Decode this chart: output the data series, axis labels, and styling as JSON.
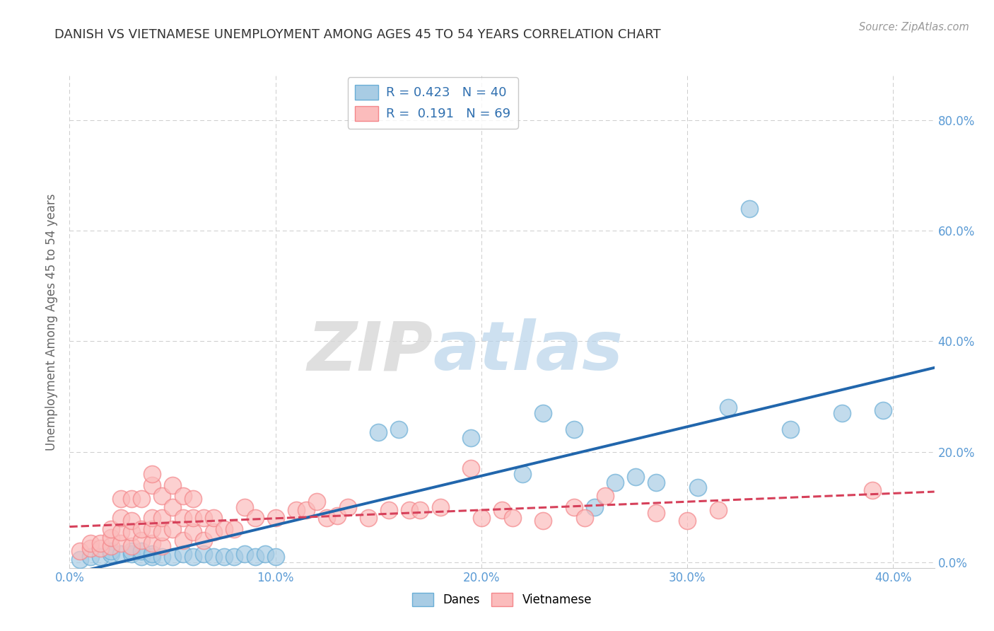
{
  "title": "DANISH VS VIETNAMESE UNEMPLOYMENT AMONG AGES 45 TO 54 YEARS CORRELATION CHART",
  "source": "Source: ZipAtlas.com",
  "xlabel_ticks": [
    "0.0%",
    "10.0%",
    "20.0%",
    "30.0%",
    "40.0%"
  ],
  "ylabel_ticks": [
    "0.0%",
    "20.0%",
    "40.0%",
    "60.0%",
    "80.0%"
  ],
  "xlim": [
    0.0,
    0.42
  ],
  "ylim": [
    -0.01,
    0.88
  ],
  "ylabel": "Unemployment Among Ages 45 to 54 years",
  "danes_r": 0.423,
  "danes_n": 40,
  "viet_r": 0.191,
  "viet_n": 69,
  "danes_color": "#a8cce4",
  "danes_edge_color": "#6aaed6",
  "viet_color": "#fbbcbc",
  "viet_edge_color": "#f4868a",
  "danes_line_color": "#2166ac",
  "viet_line_color": "#d6405a",
  "danes_scatter": [
    [
      0.005,
      0.005
    ],
    [
      0.01,
      0.01
    ],
    [
      0.015,
      0.01
    ],
    [
      0.02,
      0.015
    ],
    [
      0.02,
      0.02
    ],
    [
      0.025,
      0.015
    ],
    [
      0.03,
      0.015
    ],
    [
      0.03,
      0.02
    ],
    [
      0.035,
      0.01
    ],
    [
      0.035,
      0.02
    ],
    [
      0.04,
      0.01
    ],
    [
      0.04,
      0.015
    ],
    [
      0.045,
      0.01
    ],
    [
      0.05,
      0.01
    ],
    [
      0.055,
      0.015
    ],
    [
      0.06,
      0.01
    ],
    [
      0.065,
      0.015
    ],
    [
      0.07,
      0.01
    ],
    [
      0.075,
      0.01
    ],
    [
      0.08,
      0.01
    ],
    [
      0.085,
      0.015
    ],
    [
      0.09,
      0.01
    ],
    [
      0.095,
      0.015
    ],
    [
      0.1,
      0.01
    ],
    [
      0.15,
      0.235
    ],
    [
      0.16,
      0.24
    ],
    [
      0.195,
      0.225
    ],
    [
      0.22,
      0.16
    ],
    [
      0.23,
      0.27
    ],
    [
      0.245,
      0.24
    ],
    [
      0.255,
      0.1
    ],
    [
      0.265,
      0.145
    ],
    [
      0.275,
      0.155
    ],
    [
      0.285,
      0.145
    ],
    [
      0.305,
      0.135
    ],
    [
      0.32,
      0.28
    ],
    [
      0.33,
      0.64
    ],
    [
      0.35,
      0.24
    ],
    [
      0.375,
      0.27
    ],
    [
      0.395,
      0.275
    ]
  ],
  "viet_scatter": [
    [
      0.005,
      0.02
    ],
    [
      0.01,
      0.025
    ],
    [
      0.01,
      0.035
    ],
    [
      0.015,
      0.025
    ],
    [
      0.015,
      0.035
    ],
    [
      0.02,
      0.03
    ],
    [
      0.02,
      0.045
    ],
    [
      0.02,
      0.06
    ],
    [
      0.025,
      0.035
    ],
    [
      0.025,
      0.055
    ],
    [
      0.025,
      0.08
    ],
    [
      0.025,
      0.115
    ],
    [
      0.03,
      0.03
    ],
    [
      0.03,
      0.055
    ],
    [
      0.03,
      0.075
    ],
    [
      0.03,
      0.115
    ],
    [
      0.035,
      0.04
    ],
    [
      0.035,
      0.06
    ],
    [
      0.035,
      0.115
    ],
    [
      0.04,
      0.035
    ],
    [
      0.04,
      0.06
    ],
    [
      0.04,
      0.08
    ],
    [
      0.04,
      0.14
    ],
    [
      0.04,
      0.16
    ],
    [
      0.045,
      0.03
    ],
    [
      0.045,
      0.055
    ],
    [
      0.045,
      0.08
    ],
    [
      0.045,
      0.12
    ],
    [
      0.05,
      0.06
    ],
    [
      0.05,
      0.1
    ],
    [
      0.05,
      0.14
    ],
    [
      0.055,
      0.04
    ],
    [
      0.055,
      0.08
    ],
    [
      0.055,
      0.12
    ],
    [
      0.06,
      0.055
    ],
    [
      0.06,
      0.08
    ],
    [
      0.06,
      0.115
    ],
    [
      0.065,
      0.04
    ],
    [
      0.065,
      0.08
    ],
    [
      0.07,
      0.055
    ],
    [
      0.07,
      0.08
    ],
    [
      0.075,
      0.06
    ],
    [
      0.08,
      0.06
    ],
    [
      0.085,
      0.1
    ],
    [
      0.09,
      0.08
    ],
    [
      0.1,
      0.08
    ],
    [
      0.11,
      0.095
    ],
    [
      0.115,
      0.095
    ],
    [
      0.12,
      0.11
    ],
    [
      0.125,
      0.08
    ],
    [
      0.13,
      0.085
    ],
    [
      0.135,
      0.1
    ],
    [
      0.145,
      0.08
    ],
    [
      0.155,
      0.095
    ],
    [
      0.165,
      0.095
    ],
    [
      0.17,
      0.095
    ],
    [
      0.18,
      0.1
    ],
    [
      0.195,
      0.17
    ],
    [
      0.2,
      0.08
    ],
    [
      0.21,
      0.095
    ],
    [
      0.215,
      0.08
    ],
    [
      0.23,
      0.075
    ],
    [
      0.245,
      0.1
    ],
    [
      0.25,
      0.08
    ],
    [
      0.26,
      0.12
    ],
    [
      0.285,
      0.09
    ],
    [
      0.3,
      0.075
    ],
    [
      0.315,
      0.095
    ],
    [
      0.39,
      0.13
    ]
  ],
  "watermark_zip": "ZIP",
  "watermark_atlas": "atlas",
  "background_color": "#ffffff",
  "grid_color": "#cccccc"
}
